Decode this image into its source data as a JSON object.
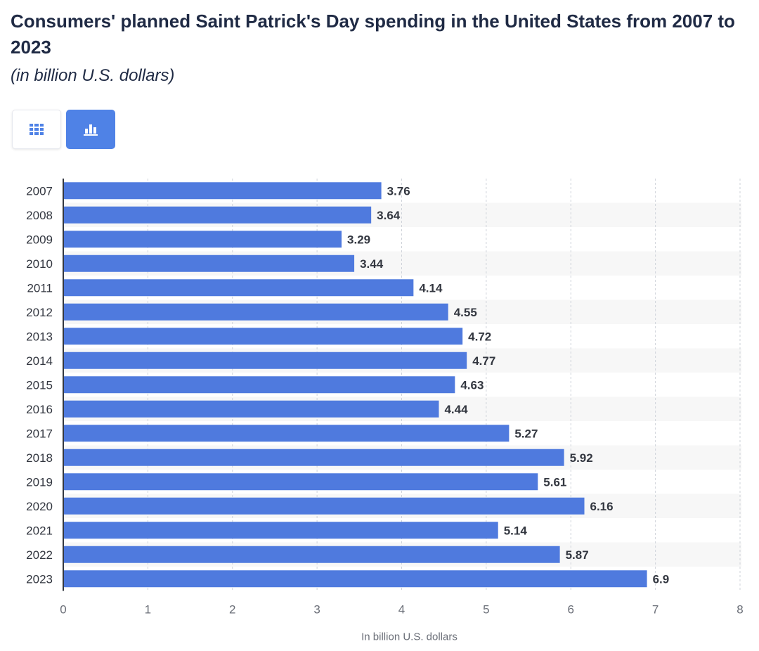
{
  "header": {
    "title": "Consumers' planned Saint Patrick's Day spending in the United States from 2007 to 2023",
    "subtitle": "(in billion U.S. dollars)"
  },
  "view_toggle": {
    "table_icon": "table-grid-icon",
    "chart_icon": "bar-chart-icon",
    "active": "chart"
  },
  "colors": {
    "bar": "#4f7ade",
    "active_button": "#4f82e6",
    "title": "#1f2a44",
    "stripe": "#f7f7f7"
  },
  "chart_data": {
    "type": "bar",
    "orientation": "horizontal",
    "categories": [
      "2007",
      "2008",
      "2009",
      "2010",
      "2011",
      "2012",
      "2013",
      "2014",
      "2015",
      "2016",
      "2017",
      "2018",
      "2019",
      "2020",
      "2021",
      "2022",
      "2023"
    ],
    "values": [
      3.76,
      3.64,
      3.29,
      3.44,
      4.14,
      4.55,
      4.72,
      4.77,
      4.63,
      4.44,
      5.27,
      5.92,
      5.61,
      6.16,
      5.14,
      5.87,
      6.9
    ],
    "value_labels": [
      "3.76",
      "3.64",
      "3.29",
      "3.44",
      "4.14",
      "4.55",
      "4.72",
      "4.77",
      "4.63",
      "4.44",
      "5.27",
      "5.92",
      "5.61",
      "6.16",
      "5.14",
      "5.87",
      "6.9"
    ],
    "xlabel": "In billion U.S. dollars",
    "ylabel": "",
    "xlim": [
      0,
      8
    ],
    "ticks": [
      "0",
      "1",
      "2",
      "3",
      "4",
      "5",
      "6",
      "7",
      "8"
    ],
    "grid": "vertical-dashed"
  }
}
